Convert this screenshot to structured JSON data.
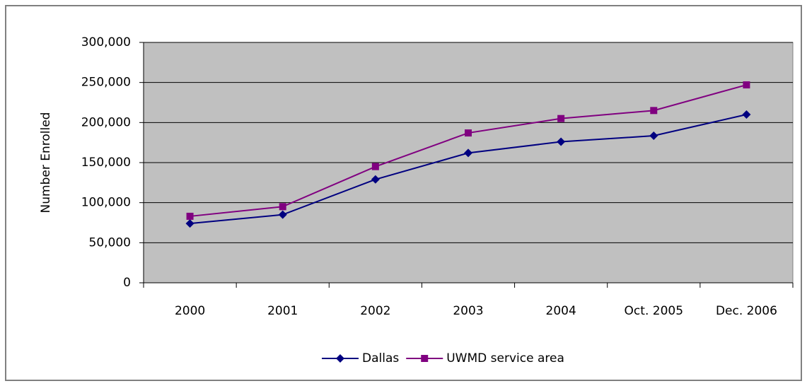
{
  "chart_data": {
    "type": "line",
    "ylabel": "Number Enrolled",
    "categories": [
      "2000",
      "2001",
      "2002",
      "2003",
      "2004",
      "Oct. 2005",
      "Dec. 2006"
    ],
    "series": [
      {
        "name": "Dallas",
        "color": "#000080",
        "marker": "diamond",
        "values": [
          74000,
          85000,
          129000,
          162000,
          176000,
          183500,
          210000
        ]
      },
      {
        "name": "UWMD service area",
        "color": "#800080",
        "marker": "square",
        "values": [
          83000,
          95000,
          145000,
          187000,
          205000,
          215000,
          247000
        ]
      }
    ],
    "ylim": [
      0,
      300000
    ],
    "yticks": [
      0,
      {
        "value": 50000,
        "label": "50,000"
      },
      {
        "value": 100000,
        "label": "100,000"
      },
      {
        "value": 150000,
        "label": "150,000"
      },
      {
        "value": 200000,
        "label": "200,000"
      },
      {
        "value": 250000,
        "label": "250,000"
      },
      {
        "value": 300000,
        "label": "300,000"
      }
    ],
    "grid": true,
    "legend": "bottom"
  }
}
